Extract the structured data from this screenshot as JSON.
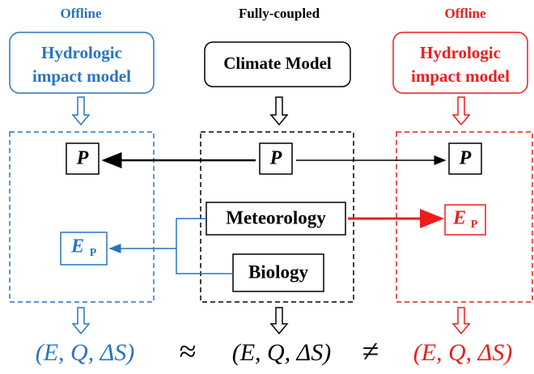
{
  "headers": {
    "left": "Offline",
    "center": "Fully-coupled",
    "right": "Offline"
  },
  "models": {
    "left": [
      "Hydrologic",
      "impact model"
    ],
    "center": "Climate Model",
    "right": [
      "Hydrologic",
      "impact model"
    ]
  },
  "nodes": {
    "p_left": "P",
    "p_center": "P",
    "p_right": "P",
    "meteorology": "Meteorology",
    "biology": "Biology",
    "ep_left": {
      "base": "E",
      "sub": "P"
    },
    "ep_right": {
      "base": "E",
      "sub": "P"
    }
  },
  "outputs": {
    "left": "(E, Q, ΔS)",
    "center": "(E, Q, ΔS)",
    "right": "(E, Q, ΔS)"
  },
  "relations": [
    "≈",
    "≠"
  ]
}
